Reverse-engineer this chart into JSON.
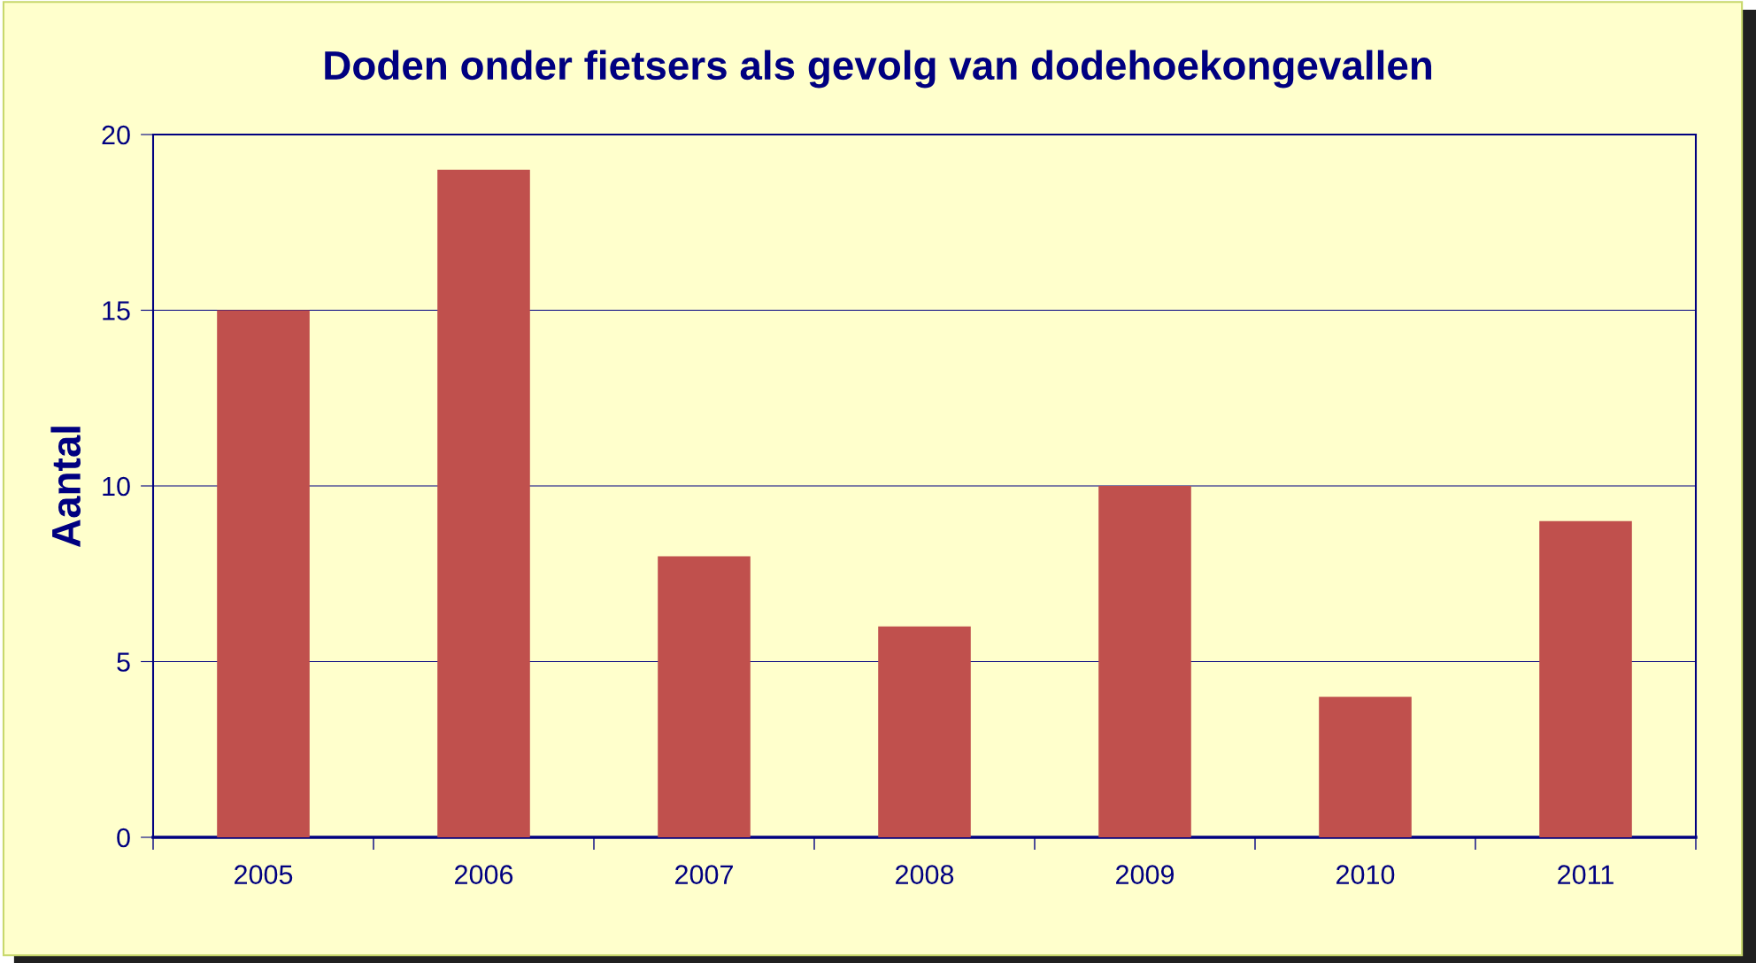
{
  "chart_data": {
    "type": "bar",
    "title": "Doden onder fietsers als gevolg van dodehoekongevallen",
    "ylabel": "Aantal",
    "categories": [
      "2005",
      "2006",
      "2007",
      "2008",
      "2009",
      "2010",
      "2011"
    ],
    "values": [
      15,
      19,
      8,
      6,
      10,
      4,
      9
    ],
    "color": "#c0504d",
    "ylim": [
      0,
      20
    ],
    "yticks": [
      0,
      5,
      10,
      15,
      20
    ],
    "grid": "y",
    "legend": false
  }
}
